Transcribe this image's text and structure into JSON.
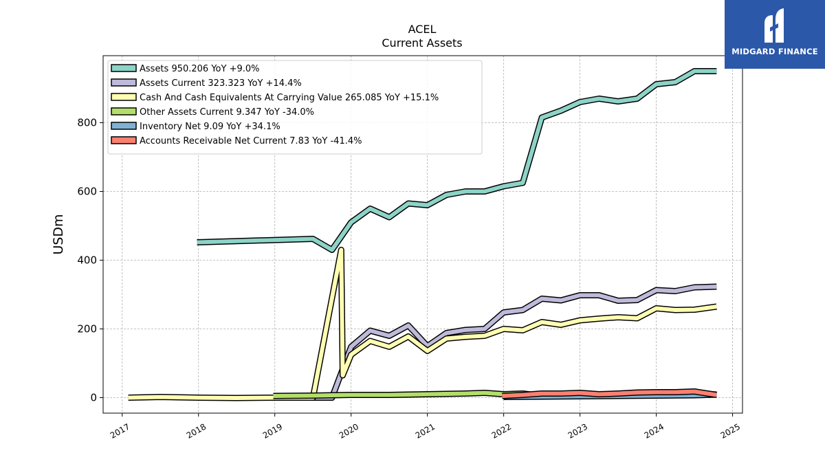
{
  "brand": {
    "name": "MIDGARD FINANCE",
    "color": "#2b58a8"
  },
  "chart_data": {
    "type": "line",
    "title": "ACEL",
    "subtitle": "Current  Assets",
    "ylabel": "USDm",
    "xlabel": "",
    "xlim": [
      2016.75,
      2025.13
    ],
    "ylim": [
      -45,
      995
    ],
    "grid": true,
    "legend_position": "top-left",
    "x_ticks": [
      "2017",
      "2018",
      "2019",
      "2020",
      "2021",
      "2022",
      "2023",
      "2024",
      "2025"
    ],
    "y_ticks": [
      0,
      200,
      400,
      600,
      800
    ],
    "series": [
      {
        "name": "Assets  950.206 YoY +9.0%",
        "color": "#8dd3c7",
        "points": [
          [
            2017.98,
            452
          ],
          [
            2019.5,
            462
          ],
          [
            2019.75,
            430
          ],
          [
            2020.0,
            510
          ],
          [
            2020.25,
            550
          ],
          [
            2020.5,
            525
          ],
          [
            2020.75,
            565
          ],
          [
            2021.0,
            560
          ],
          [
            2021.25,
            590
          ],
          [
            2021.5,
            600
          ],
          [
            2021.75,
            600
          ],
          [
            2022.0,
            615
          ],
          [
            2022.25,
            625
          ],
          [
            2022.5,
            815
          ],
          [
            2022.75,
            835
          ],
          [
            2023.0,
            860
          ],
          [
            2023.25,
            870
          ],
          [
            2023.5,
            862
          ],
          [
            2023.75,
            870
          ],
          [
            2024.0,
            912
          ],
          [
            2024.25,
            918
          ],
          [
            2024.5,
            950
          ],
          [
            2024.79,
            950
          ]
        ]
      },
      {
        "name": "Assets Current  323.323 YoY +14.4%",
        "color": "#bebada",
        "points": [
          [
            2018.98,
            0
          ],
          [
            2019.75,
            0
          ],
          [
            2020.0,
            148
          ],
          [
            2020.25,
            195
          ],
          [
            2020.5,
            180
          ],
          [
            2020.75,
            210
          ],
          [
            2021.0,
            150
          ],
          [
            2021.25,
            188
          ],
          [
            2021.5,
            197
          ],
          [
            2021.75,
            200
          ],
          [
            2022.0,
            248
          ],
          [
            2022.25,
            255
          ],
          [
            2022.5,
            288
          ],
          [
            2022.75,
            283
          ],
          [
            2023.0,
            298
          ],
          [
            2023.25,
            298
          ],
          [
            2023.5,
            282
          ],
          [
            2023.75,
            284
          ],
          [
            2024.0,
            313
          ],
          [
            2024.25,
            310
          ],
          [
            2024.5,
            321
          ],
          [
            2024.79,
            323
          ]
        ]
      },
      {
        "name": "Cash And Cash Equivalents At Carrying Value  265.085 YoY +15.1%",
        "color": "#ffffb3",
        "points": [
          [
            2017.08,
            0
          ],
          [
            2017.5,
            2
          ],
          [
            2018.0,
            0
          ],
          [
            2018.5,
            -1
          ],
          [
            2019.0,
            0
          ],
          [
            2019.5,
            0
          ],
          [
            2019.87,
            430
          ],
          [
            2019.89,
            65
          ],
          [
            2020.0,
            125
          ],
          [
            2020.25,
            165
          ],
          [
            2020.5,
            148
          ],
          [
            2020.75,
            178
          ],
          [
            2021.0,
            136
          ],
          [
            2021.25,
            172
          ],
          [
            2021.5,
            177
          ],
          [
            2021.75,
            180
          ],
          [
            2022.0,
            200
          ],
          [
            2022.25,
            196
          ],
          [
            2022.5,
            220
          ],
          [
            2022.75,
            212
          ],
          [
            2023.0,
            225
          ],
          [
            2023.25,
            230
          ],
          [
            2023.5,
            234
          ],
          [
            2023.75,
            231
          ],
          [
            2024.0,
            260
          ],
          [
            2024.25,
            255
          ],
          [
            2024.5,
            256
          ],
          [
            2024.79,
            265
          ]
        ]
      },
      {
        "name": "Other Assets Current  9.347 YoY -34.0%",
        "color": "#b3de69",
        "points": [
          [
            2018.98,
            5
          ],
          [
            2019.5,
            6
          ],
          [
            2020.0,
            8
          ],
          [
            2020.5,
            8
          ],
          [
            2021.0,
            10
          ],
          [
            2021.5,
            12
          ],
          [
            2021.75,
            14
          ],
          [
            2022.0,
            10
          ],
          [
            2022.25,
            12
          ],
          [
            2022.5,
            5
          ],
          [
            2022.75,
            6
          ],
          [
            2023.0,
            7
          ],
          [
            2023.25,
            8
          ],
          [
            2023.5,
            9
          ],
          [
            2023.75,
            10
          ],
          [
            2024.0,
            12
          ],
          [
            2024.25,
            14
          ],
          [
            2024.5,
            13
          ],
          [
            2024.79,
            9
          ]
        ]
      },
      {
        "name": "Inventory Net  9.09 YoY +34.1%",
        "color": "#80b1d3",
        "points": [
          [
            2022.0,
            2
          ],
          [
            2022.5,
            3
          ],
          [
            2023.0,
            4
          ],
          [
            2023.5,
            5
          ],
          [
            2024.0,
            6
          ],
          [
            2024.5,
            7
          ],
          [
            2024.79,
            9
          ]
        ]
      },
      {
        "name": "Accounts Receivable Net Current  7.83 YoY -41.4%",
        "color": "#fb8072",
        "points": [
          [
            2021.98,
            5
          ],
          [
            2022.25,
            8
          ],
          [
            2022.5,
            12
          ],
          [
            2022.75,
            12
          ],
          [
            2023.0,
            14
          ],
          [
            2023.25,
            10
          ],
          [
            2023.5,
            12
          ],
          [
            2023.75,
            15
          ],
          [
            2024.0,
            16
          ],
          [
            2024.25,
            16
          ],
          [
            2024.5,
            18
          ],
          [
            2024.79,
            8
          ]
        ]
      }
    ]
  }
}
